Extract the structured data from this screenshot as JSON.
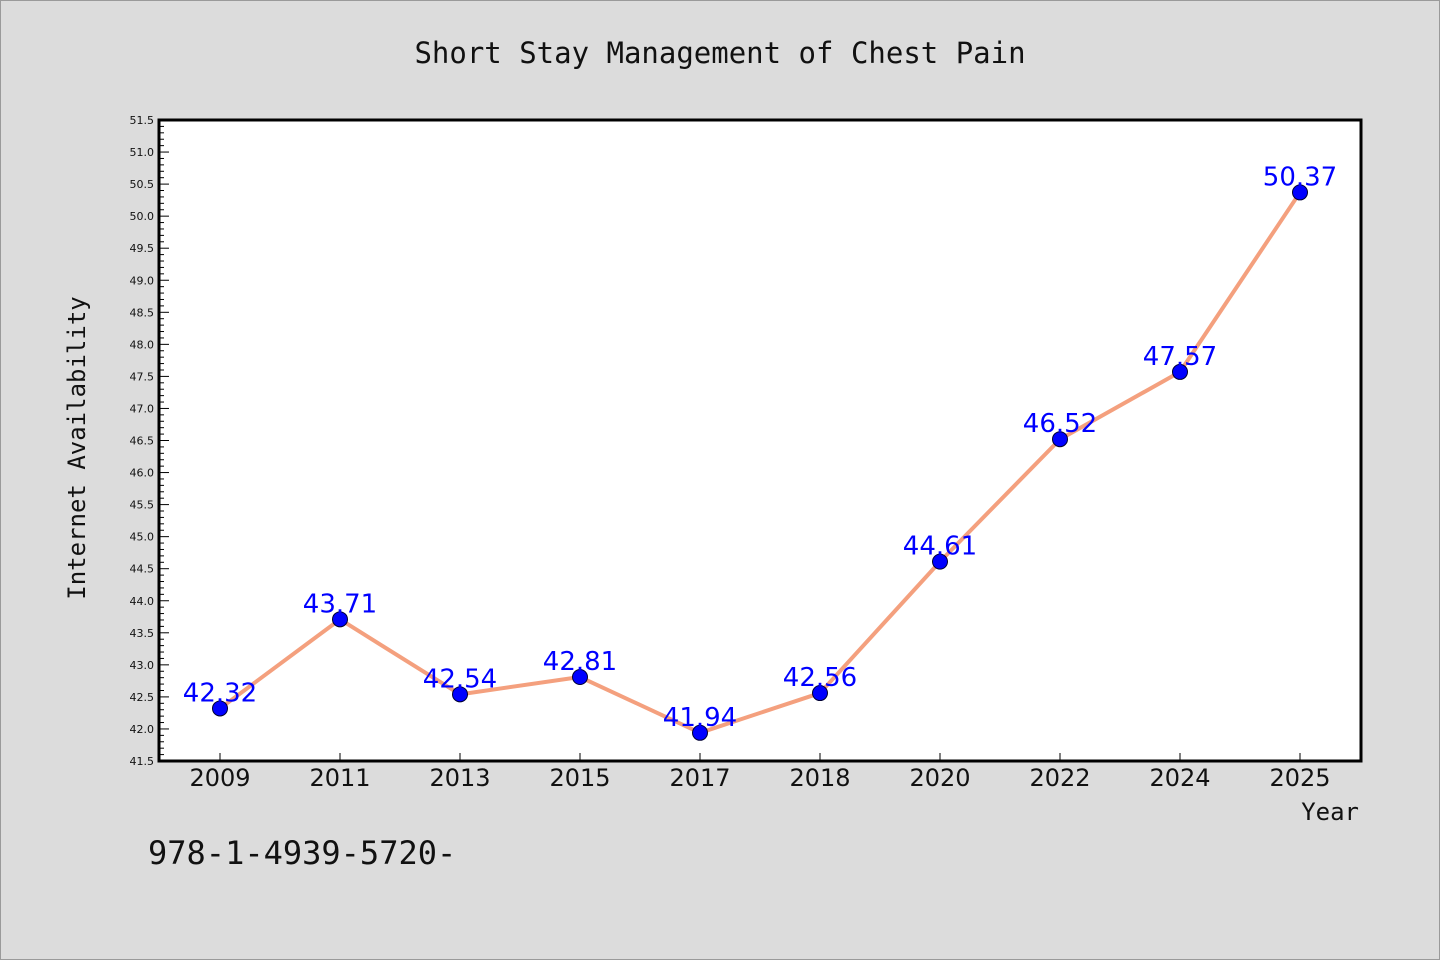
{
  "chart_data": {
    "type": "line",
    "title": "Short Stay Management of Chest Pain",
    "xlabel": "Year",
    "ylabel": "Internet Availability",
    "categories": [
      "2009",
      "2011",
      "2013",
      "2015",
      "2017",
      "2018",
      "2020",
      "2022",
      "2024",
      "2025"
    ],
    "series": [
      {
        "values": [
          42.32,
          43.71,
          42.54,
          42.81,
          41.94,
          42.56,
          44.61,
          46.52,
          47.57,
          50.37
        ],
        "labels": [
          "42.32",
          "43.71",
          "42.54",
          "42.81",
          "41.94",
          "42.56",
          "44.61",
          "46.52",
          "47.57",
          "50.37"
        ],
        "line_color": "#f4a07e",
        "marker_color": "#0000ff"
      }
    ],
    "ylim": [
      41.5,
      51.5
    ],
    "yticks": [
      "41.5",
      "42.0",
      "42.5",
      "43.0",
      "43.5",
      "44.0",
      "44.5",
      "45.0",
      "45.5",
      "46.0",
      "46.5",
      "47.0",
      "47.5",
      "48.0",
      "48.5",
      "49.0",
      "49.5",
      "50.0",
      "50.5",
      "51.0",
      "51.5"
    ],
    "grid": false,
    "legend": "none",
    "plot_background": "#ffffff",
    "figure_background": "#dcdcdc"
  },
  "footnote": "978-1-4939-5720-"
}
